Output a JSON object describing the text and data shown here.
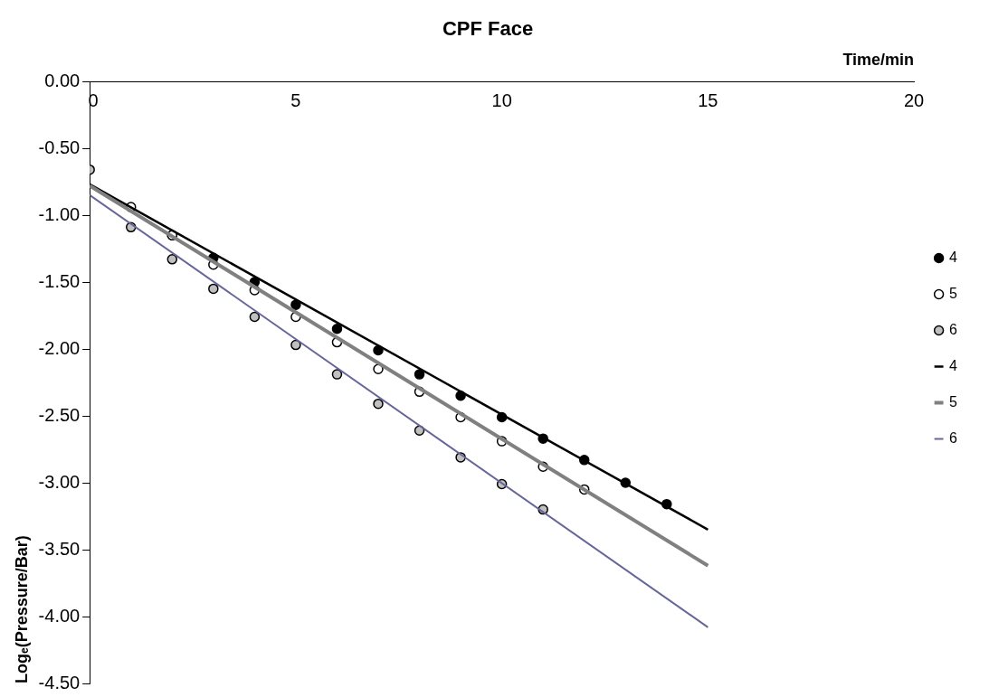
{
  "chart_data": {
    "type": "scatter",
    "title": "CPF Face",
    "xlabel": "Time/min",
    "ylabel": "Logₑ(Pressure/Bar)",
    "xlim": [
      0,
      20
    ],
    "xticks": [
      0,
      5,
      10,
      15,
      20
    ],
    "ylim": [
      -4.5,
      0
    ],
    "yticks": [
      {
        "value": 0,
        "label": "0.00"
      },
      {
        "value": -0.5,
        "label": "-0.50"
      },
      {
        "value": -1,
        "label": "-1.00"
      },
      {
        "value": -1.5,
        "label": "-1.50"
      },
      {
        "value": -2,
        "label": "-2.00"
      },
      {
        "value": -2.5,
        "label": "-2.50"
      },
      {
        "value": -3,
        "label": "-3.00"
      },
      {
        "value": -3.5,
        "label": "-3.50"
      },
      {
        "value": -4,
        "label": "-4.00"
      },
      {
        "value": -4.5,
        "label": "-4.50"
      }
    ],
    "grid": false,
    "legend": "right",
    "marker": "circle",
    "line_style": "solid",
    "series": [
      {
        "name": "4",
        "type": "scatter",
        "color": "#000000",
        "x": [
          2,
          3,
          4,
          5,
          6,
          7,
          8,
          9,
          10,
          11,
          12,
          13,
          14
        ],
        "values": [
          -1.15,
          -1.32,
          -1.5,
          -1.67,
          -1.85,
          -2.01,
          -2.19,
          -2.35,
          -2.51,
          -2.67,
          -2.83,
          -3.0,
          -3.16
        ]
      },
      {
        "name": "5",
        "type": "scatter",
        "color": "#ffffff",
        "x": [
          1,
          2,
          3,
          4,
          5,
          6,
          7,
          8,
          9,
          10,
          11,
          12
        ],
        "values": [
          -0.94,
          -1.15,
          -1.37,
          -1.56,
          -1.76,
          -1.95,
          -2.15,
          -2.32,
          -2.51,
          -2.69,
          -2.88,
          -3.05
        ]
      },
      {
        "name": "6",
        "type": "scatter",
        "color": "#c0c0c0",
        "x": [
          0,
          1,
          2,
          3,
          4,
          5,
          6,
          7,
          8,
          9,
          10,
          11
        ],
        "values": [
          -0.66,
          -1.09,
          -1.33,
          -1.55,
          -1.76,
          -1.97,
          -2.19,
          -2.41,
          -2.61,
          -2.81,
          -3.01,
          -3.2
        ]
      },
      {
        "name": "4",
        "type": "line",
        "marker": "none",
        "color": "#000000",
        "x": [
          0,
          15
        ],
        "values": [
          -0.77,
          -3.35
        ]
      },
      {
        "name": "5",
        "type": "line",
        "marker": "none",
        "color": "#808080",
        "x": [
          0,
          15
        ],
        "values": [
          -0.78,
          -3.62
        ]
      },
      {
        "name": "6",
        "type": "line",
        "marker": "none",
        "color": "#666699",
        "x": [
          0,
          15
        ],
        "values": [
          -0.85,
          -4.08
        ]
      }
    ]
  }
}
